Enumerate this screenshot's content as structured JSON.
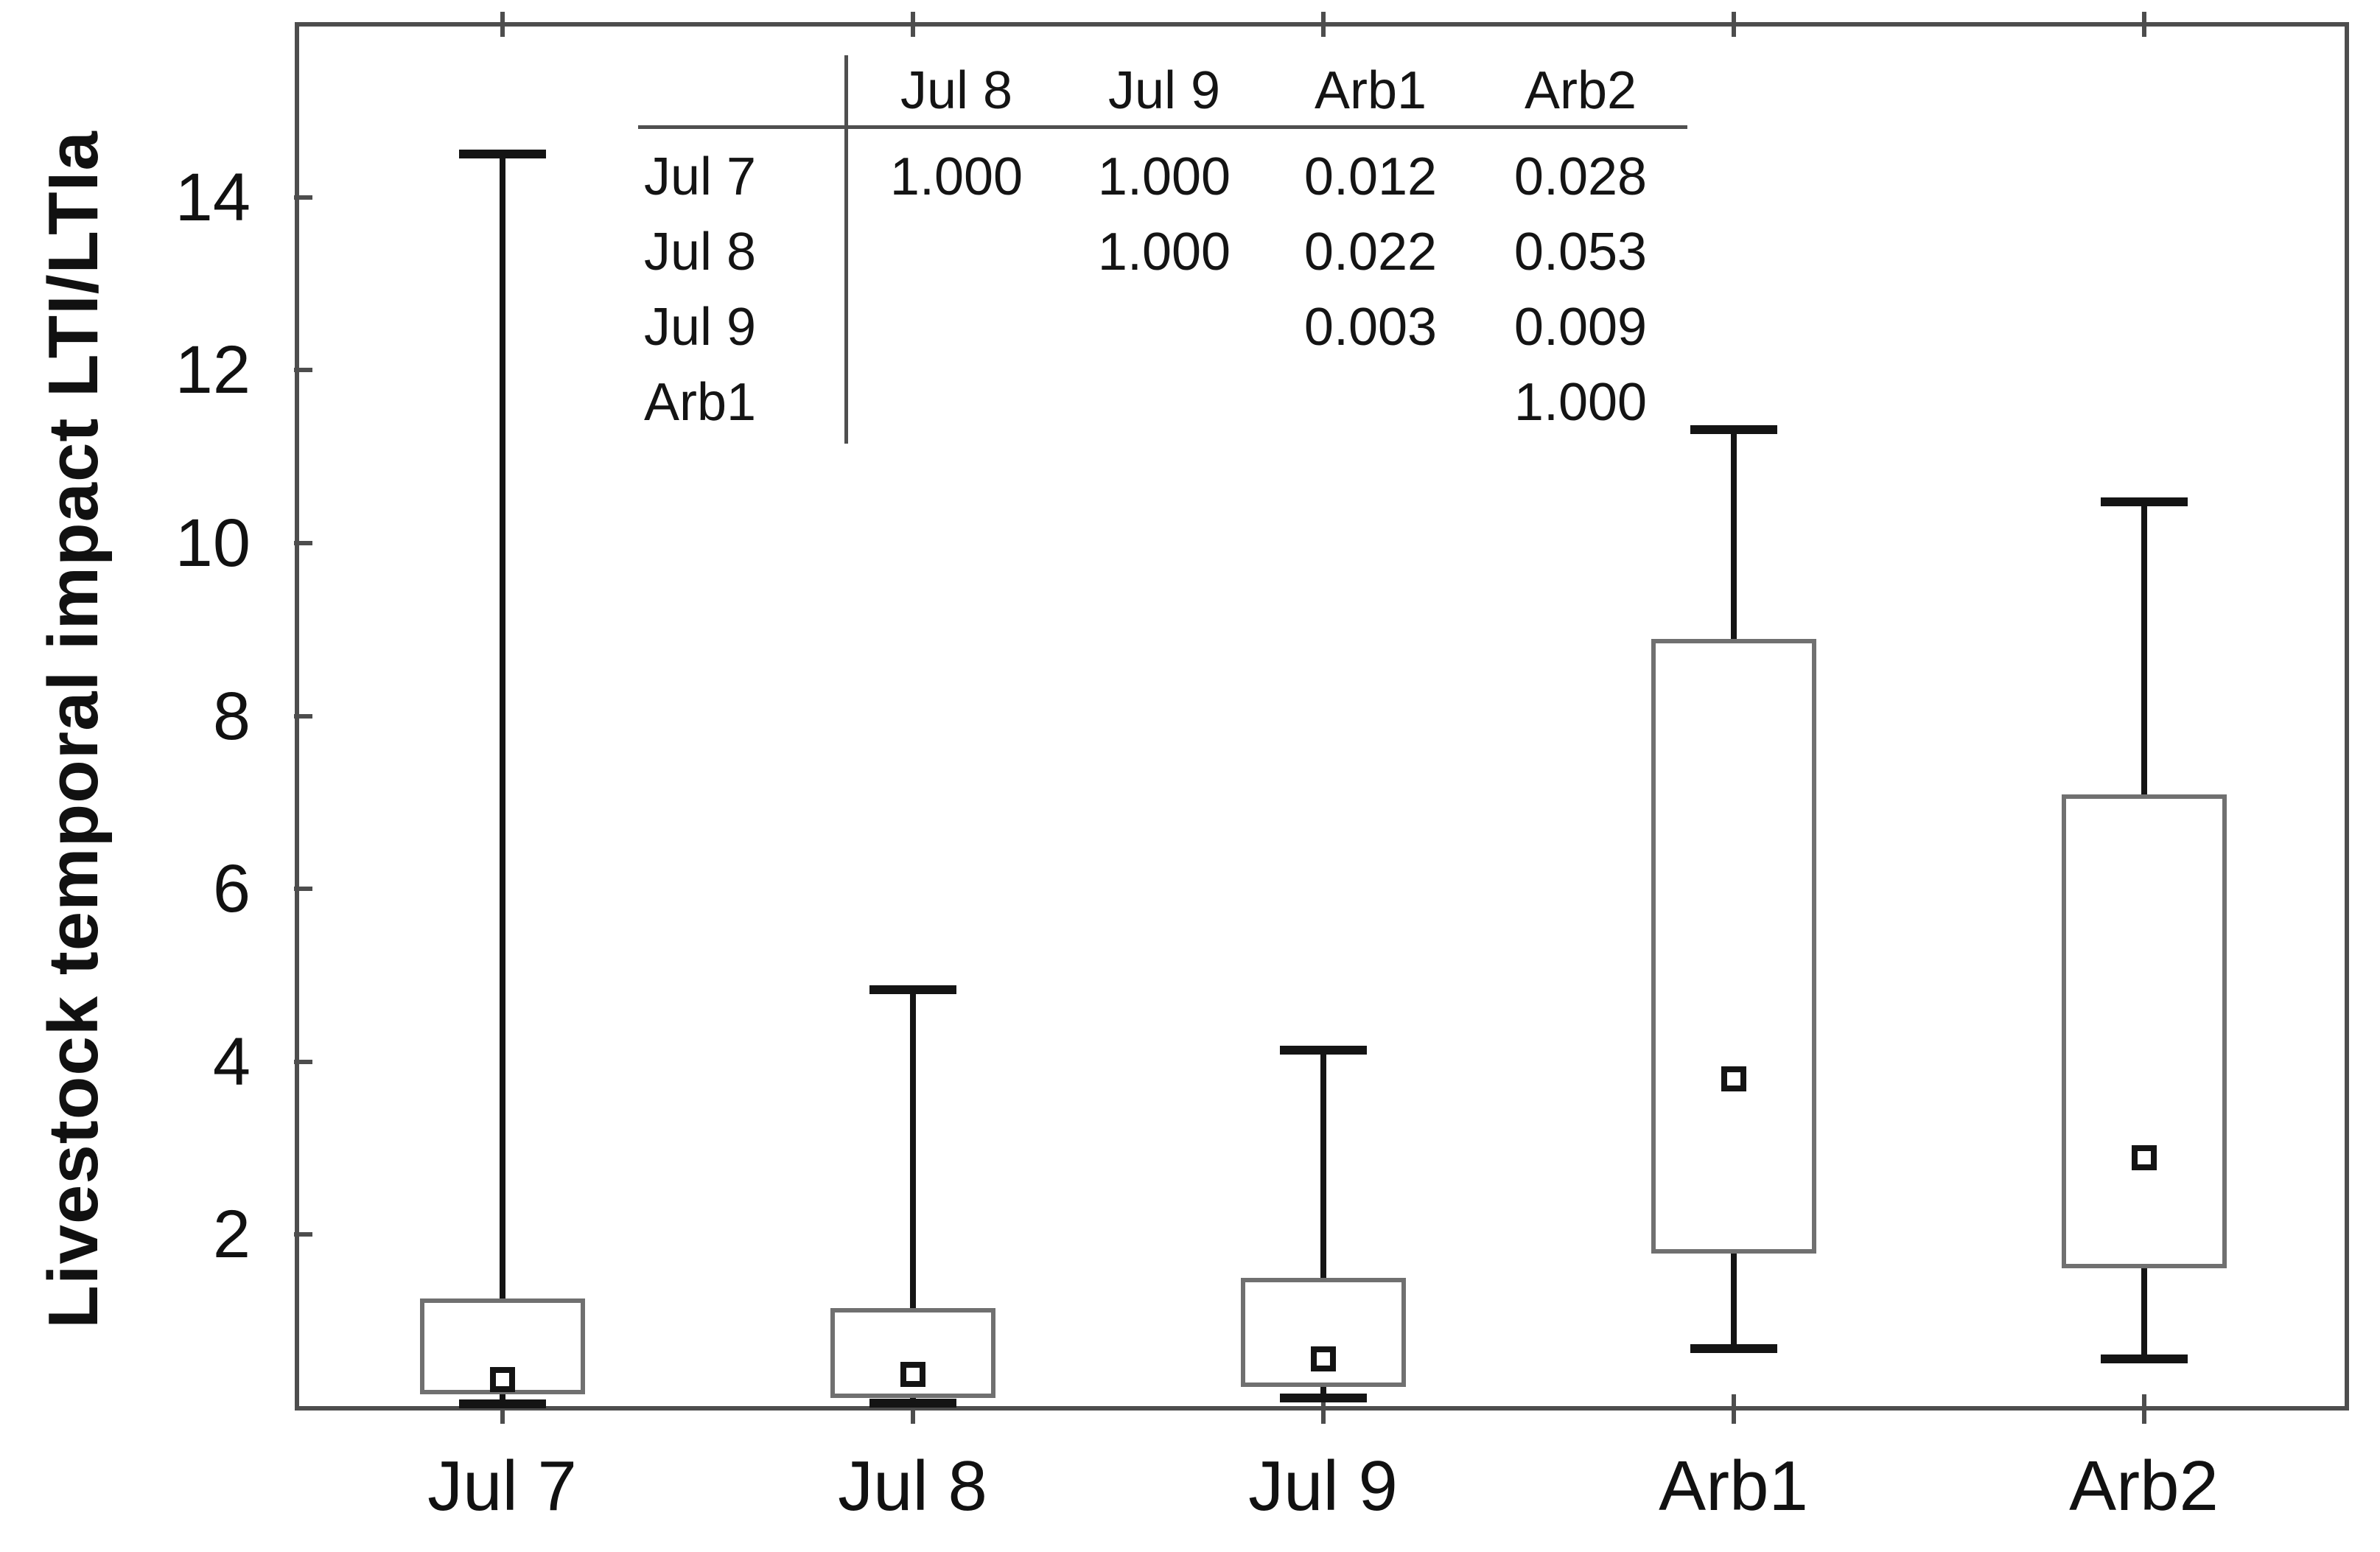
{
  "figure": {
    "y_axis_title": "Livestock temporal impact LTI/LTIa",
    "background": "#ffffff"
  },
  "chart_data": {
    "type": "boxplot",
    "title": "",
    "xlabel": "",
    "ylabel": "Livestock temporal impact LTI/LTIa",
    "categories": [
      "Jul 7",
      "Jul 8",
      "Jul 9",
      "Arb1",
      "Arb2"
    ],
    "y_ticks": [
      2,
      4,
      6,
      8,
      10,
      12,
      14
    ],
    "ylim": [
      0,
      16
    ],
    "grid": false,
    "legend": "none",
    "marker": "mean-square",
    "series": [
      {
        "category": "Jul 7",
        "whisker_low": 0.04,
        "q1": 0.15,
        "mean": 0.32,
        "q3": 1.26,
        "whisker_high": 14.5
      },
      {
        "category": "Jul 8",
        "whisker_low": 0.05,
        "q1": 0.11,
        "mean": 0.38,
        "q3": 1.15,
        "whisker_high": 4.83
      },
      {
        "category": "Jul 9",
        "whisker_low": 0.11,
        "q1": 0.24,
        "mean": 0.56,
        "q3": 1.5,
        "whisker_high": 4.13
      },
      {
        "category": "Arb1",
        "whisker_low": 0.68,
        "q1": 1.78,
        "mean": 3.8,
        "q3": 8.89,
        "whisker_high": 11.31
      },
      {
        "category": "Arb2",
        "whisker_low": 0.56,
        "q1": 1.61,
        "mean": 2.89,
        "q3": 7.09,
        "whisker_high": 10.48
      }
    ]
  },
  "inset_table": {
    "col_headers": [
      "Jul 8",
      "Jul 9",
      "Arb1",
      "Arb2"
    ],
    "rows": [
      {
        "label": "Jul 7",
        "values": [
          "1.000",
          "1.000",
          "0.012",
          "0.028"
        ]
      },
      {
        "label": "Jul 8",
        "values": [
          "",
          "1.000",
          "0.022",
          "0.053"
        ]
      },
      {
        "label": "Jul 9",
        "values": [
          "",
          "",
          "0.003",
          "0.009"
        ]
      },
      {
        "label": "Arb1",
        "values": [
          "",
          "",
          "",
          "1.000"
        ]
      }
    ]
  },
  "colors": {
    "frame": "#4d4d4d",
    "box_border": "#707070",
    "whisker": "#141414",
    "text": "#111111",
    "background": "#ffffff"
  }
}
